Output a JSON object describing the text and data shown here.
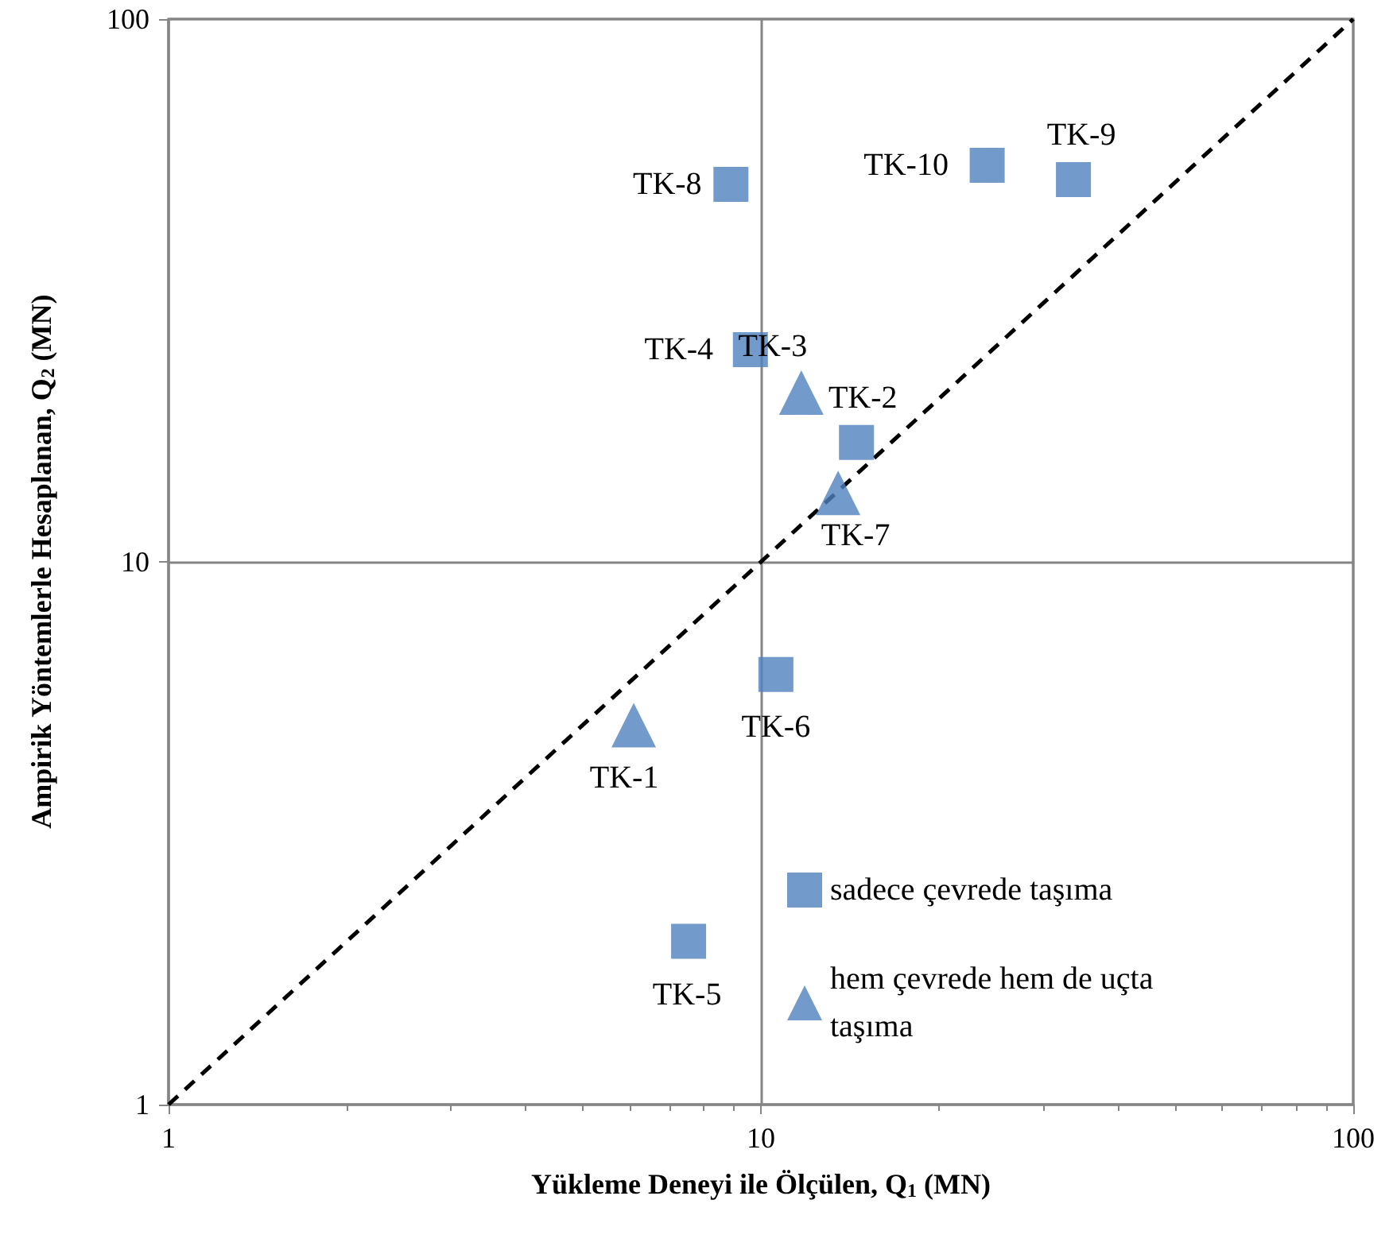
{
  "chart_data": {
    "type": "scatter",
    "xlabel": "Yükleme Deneyi ile Ölçülen, Q$_{1}$ (MN)",
    "ylabel": "Ampirik Yöntemlerle Hesaplanan, Q$_{2}$ (MN)",
    "log": "xy",
    "xlim": [
      1,
      100
    ],
    "ylim": [
      1,
      100
    ],
    "xticks": [
      1,
      10,
      100
    ],
    "yticks": [
      1,
      10,
      100
    ],
    "grid": true,
    "legend": "bottom right",
    "series": [
      {
        "name": "sadece çevrede taşıma",
        "color": "#4f81bd",
        "marker": "square",
        "x": [
          8.9,
          24.1,
          33.7,
          9.6,
          14.5,
          10.6,
          7.55
        ],
        "values": [
          49.6,
          53.8,
          50.6,
          24.6,
          16.6,
          6.2,
          2.0
        ]
      },
      {
        "name": "hem çevrede hem de uçta taşıma",
        "color": "#4f81bd",
        "marker": "triangle",
        "x": [
          11.7,
          13.5,
          6.1
        ],
        "values": [
          20.5,
          13.4,
          5.0
        ]
      },
      {
        "type": "line",
        "color": "#000000",
        "line_style": "dashed",
        "marker": "none",
        "x": [
          1,
          100
        ],
        "values": [
          1,
          100
        ]
      }
    ],
    "annotations": [
      {
        "text": "TK-8",
        "x": 8.9,
        "y": 49.6
      },
      {
        "text": "TK-10",
        "x": 24.1,
        "y": 53.8
      },
      {
        "text": "TK-9",
        "x": 33.7,
        "y": 50.6
      },
      {
        "text": "TK-4",
        "x": 9.6,
        "y": 24.6
      },
      {
        "text": "TK-3",
        "x": 11.7,
        "y": 20.5
      },
      {
        "text": "TK-2",
        "x": 14.5,
        "y": 16.6
      },
      {
        "text": "TK-7",
        "x": 13.5,
        "y": 13.4
      },
      {
        "text": "TK-6",
        "x": 10.6,
        "y": 6.2
      },
      {
        "text": "TK-1",
        "x": 6.1,
        "y": 5.0
      },
      {
        "text": "TK-5",
        "x": 7.55,
        "y": 2.0
      }
    ]
  }
}
